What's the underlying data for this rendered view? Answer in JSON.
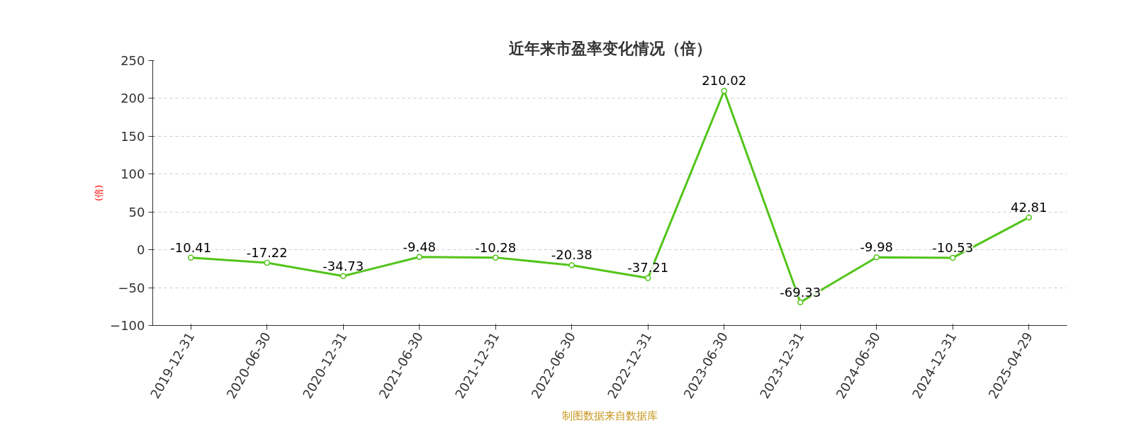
{
  "chart_data": {
    "type": "line",
    "title": "近年来市盈率变化情况（倍）",
    "ylabel": "(倍)",
    "categories": [
      "2019-12-31",
      "2020-06-30",
      "2020-12-31",
      "2021-06-30",
      "2021-12-31",
      "2022-06-30",
      "2022-12-31",
      "2023-06-30",
      "2023-12-31",
      "2024-06-30",
      "2024-12-31",
      "2025-04-29"
    ],
    "series": [
      {
        "color": "#52c41a",
        "values": [
          -10.41,
          -17.22,
          -34.73,
          -9.48,
          -10.28,
          -20.38,
          -37.21,
          210.02,
          -69.33,
          -9.98,
          -10.53,
          42.81
        ]
      }
    ],
    "ylim": [
      -100,
      250
    ],
    "yticks": [
      -100,
      -50,
      0,
      50,
      100,
      150,
      200,
      250
    ],
    "grid": "y",
    "marker": "circle",
    "line_style": "solid",
    "data_labels": true,
    "annotations": [
      "制图数据来自数据库"
    ]
  }
}
